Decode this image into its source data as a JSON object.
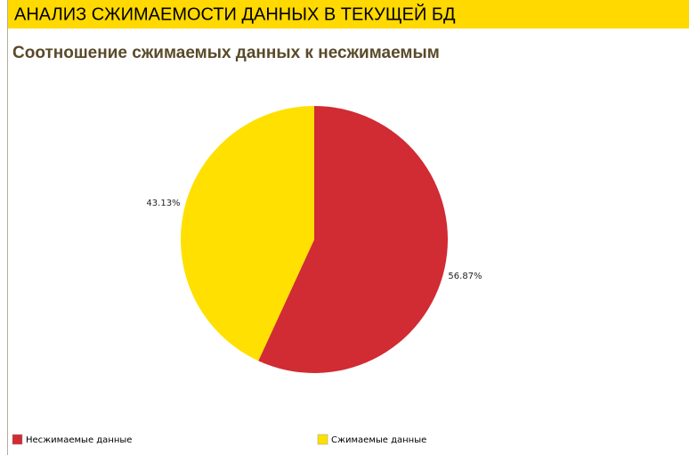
{
  "chart_data": {
    "type": "pie",
    "title": "АНАЛИЗ СЖИМАЕМОСТИ ДАННЫХ В ТЕКУЩЕЙ БД",
    "subtitle": "Соотношение сжимаемых данных к несжимаемым",
    "categories": [
      "Несжимаемые данные",
      "Сжимаемые данные"
    ],
    "values": [
      56.87,
      43.13
    ],
    "value_labels": [
      "56.87%",
      "43.13%"
    ],
    "colors": [
      "#d12b33",
      "#ffe000"
    ],
    "legend": "bottom"
  }
}
